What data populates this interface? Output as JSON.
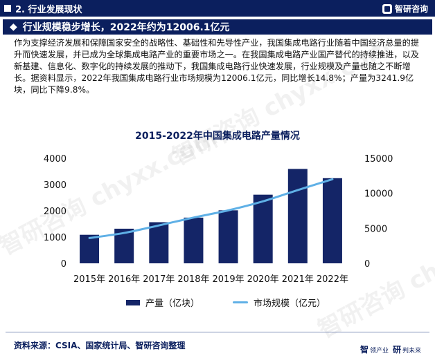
{
  "header": {
    "section_title": "2. 行业发展现状",
    "brand": "智研咨询"
  },
  "headline": {
    "icon": "diamond-icon",
    "text": "行业规模稳步增长，2022年约为12006.1亿元"
  },
  "paragraph": "作为支撑经济发展和保障国家安全的战略性、基础性和先导性产业，我国集成电路行业随着中国经济总量的提升而快速发展，并已成为全球集成电路产业的重要市场之一。在我国集成电路产业国产替代的持续推进，以及新基建、信息化、数字化的持续发展的推动下，我国集成电路行业快速发展，行业规模及产量也随之不断增长。据资料显示，2022年我国集成电路行业市场规模为12006.1亿元，同比增长14.8%；产量为3241.9亿块，同比下降9.8%。",
  "chart_data": {
    "type": "bar",
    "title": "2015-2022年中国集成电路产量情况",
    "categories": [
      "2015年",
      "2016年",
      "2017年",
      "2018年",
      "2019年",
      "2020年",
      "2021年",
      "2022年"
    ],
    "series": [
      {
        "name": "产量（亿块）",
        "type": "bar",
        "axis": "left",
        "color": "#142567",
        "values": [
          1087,
          1318,
          1565,
          1740,
          2018,
          2614,
          3594,
          3242
        ]
      },
      {
        "name": "市场规模（亿元）",
        "type": "line",
        "axis": "right",
        "color": "#5fb0e6",
        "values": [
          3610,
          4336,
          5411,
          6532,
          7562,
          8848,
          10458,
          12006
        ]
      }
    ],
    "y_left": {
      "ylim": [
        0,
        4000
      ],
      "ticks": [
        "0",
        "1000",
        "2000",
        "3000",
        "4000"
      ]
    },
    "y_right": {
      "ylim": [
        0,
        15000
      ],
      "ticks": [
        "0",
        "5000",
        "10000",
        "15000"
      ]
    },
    "grid": false,
    "legend_position": "bottom"
  },
  "legend": {
    "bar_label": "产量（亿块）",
    "line_label": "市场规模（亿元）"
  },
  "footer": {
    "source": "资料来源：CSIA、国家统计局、智研咨询整理",
    "brand_big1": "智",
    "brand_small1": "领产业",
    "brand_big2": "研",
    "brand_small2": "判未来"
  },
  "watermark": "智研咨询  chyxx.com"
}
